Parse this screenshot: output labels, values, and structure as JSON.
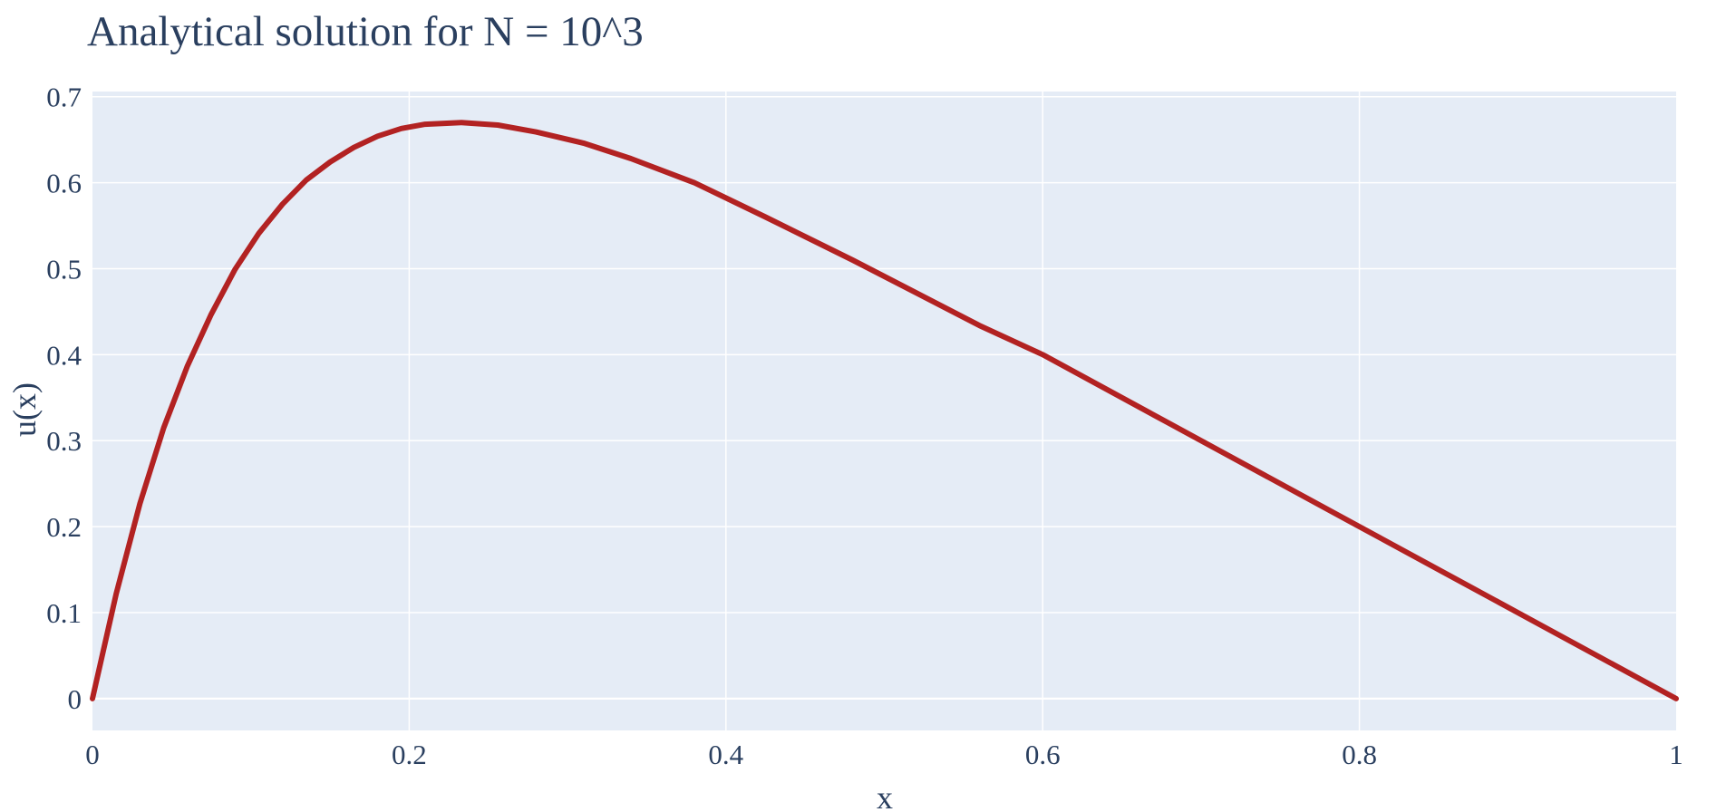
{
  "colors": {
    "text": "#2a3f5f",
    "plot_background": "#e5ecf6",
    "grid": "#ffffff",
    "line": "#b22222",
    "paper": "#ffffff"
  },
  "chart_data": {
    "type": "line",
    "title": "Analytical solution for N = 10^3",
    "xlabel": "x",
    "ylabel": "u(x)",
    "xlim": [
      0,
      1
    ],
    "ylim": [
      -0.037,
      0.706
    ],
    "x_ticks": [
      0,
      0.2,
      0.4,
      0.6,
      0.8,
      1
    ],
    "x_tick_labels": [
      "0",
      "0.2",
      "0.4",
      "0.6",
      "0.8",
      "1"
    ],
    "y_ticks": [
      0,
      0.1,
      0.2,
      0.3,
      0.4,
      0.5,
      0.6,
      0.7
    ],
    "y_tick_labels": [
      "0",
      "0.1",
      "0.2",
      "0.3",
      "0.4",
      "0.5",
      "0.6",
      "0.7"
    ],
    "grid": true,
    "legend": "none",
    "series": [
      {
        "x": [
          0,
          0.015,
          0.03,
          0.045,
          0.06,
          0.075,
          0.09,
          0.105,
          0.12,
          0.135,
          0.15,
          0.165,
          0.18,
          0.195,
          0.21,
          0.233,
          0.256,
          0.28,
          0.31,
          0.34,
          0.38,
          0.425,
          0.48,
          0.56,
          0.6,
          0.68,
          0.8,
          0.9,
          1.0
        ],
        "y": [
          0,
          0.122,
          0.227,
          0.315,
          0.387,
          0.447,
          0.499,
          0.541,
          0.575,
          0.603,
          0.624,
          0.641,
          0.654,
          0.663,
          0.668,
          0.67,
          0.667,
          0.659,
          0.646,
          0.628,
          0.6,
          0.56,
          0.51,
          0.434,
          0.4,
          0.32,
          0.2,
          0.1,
          0.0
        ]
      }
    ]
  }
}
